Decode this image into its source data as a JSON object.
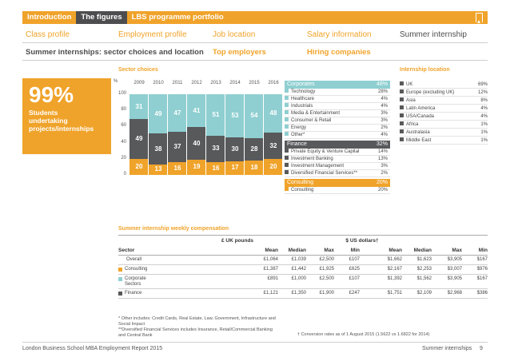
{
  "topnav": {
    "tabs": [
      "Introduction",
      "The figures",
      "LBS programme portfolio"
    ],
    "active": 1
  },
  "subnav": [
    "Class profile",
    "Employment profile",
    "Job location",
    "Salary information",
    "Summer internship"
  ],
  "subnav2": [
    "Summer internships: sector choices and location",
    "Top employers",
    "Hiring companies"
  ],
  "stat": {
    "value": "99%",
    "text": "Students undertaking projects/internships"
  },
  "sector_choices_title": "Sector choices",
  "internship_location_title": "Internship location",
  "chart_data": {
    "type": "bar",
    "stacked": true,
    "categories": [
      "2009",
      "2010",
      "2011",
      "2012",
      "2013",
      "2014",
      "2015",
      "2016"
    ],
    "ylabel": "%",
    "ylim": [
      0,
      100
    ],
    "yticks": [
      "0",
      "20",
      "40",
      "60",
      "80",
      "100"
    ],
    "series": [
      {
        "name": "Consulting",
        "color": "#f0a32a",
        "values": [
          20,
          13,
          16,
          19,
          16,
          17,
          18,
          20
        ]
      },
      {
        "name": "Finance",
        "color": "#58595b",
        "values": [
          49,
          38,
          37,
          40,
          33,
          30,
          28,
          32
        ]
      },
      {
        "name": "Corporates",
        "color": "#8fcfd1",
        "values": [
          31,
          49,
          47,
          41,
          51,
          53,
          54,
          48
        ]
      }
    ]
  },
  "sectors": [
    {
      "name": "Corporates",
      "pct": "48%",
      "color": "#8fcfd1",
      "items": [
        [
          "Technology",
          "28%"
        ],
        [
          "Healthcare",
          "4%"
        ],
        [
          "Industrials",
          "4%"
        ],
        [
          "Media & Entertainment",
          "3%"
        ],
        [
          "Consumer & Retail",
          "3%"
        ],
        [
          "Energy",
          "2%"
        ],
        [
          "Other*",
          "4%"
        ]
      ]
    },
    {
      "name": "Finance",
      "pct": "32%",
      "color": "#58595b",
      "items": [
        [
          "Private Equity & Venture Capital",
          "14%"
        ],
        [
          "Investment Banking",
          "13%"
        ],
        [
          "Investment Management",
          "3%"
        ],
        [
          "Diversified Financial Services**",
          "2%"
        ]
      ]
    },
    {
      "name": "Consulting",
      "pct": "20%",
      "color": "#f0a32a",
      "items": [
        [
          "Consulting",
          "20%"
        ]
      ]
    }
  ],
  "locations": [
    [
      "UK",
      "69%"
    ],
    [
      "Europe (excluding UK)",
      "12%"
    ],
    [
      "Asia",
      "8%"
    ],
    [
      "Latin America",
      "4%"
    ],
    [
      "USA/Canada",
      "4%"
    ],
    [
      "Africa",
      "1%"
    ],
    [
      "Australasia",
      "1%"
    ],
    [
      "Middle East",
      "1%"
    ]
  ],
  "comp": {
    "title": "Summer internship weekly compensation",
    "group_gbp": "£ UK pounds",
    "group_usd": "$ US dollars†",
    "headers": [
      "Sector",
      "Mean",
      "Median",
      "Max",
      "Min",
      "Mean",
      "Median",
      "Max",
      "Min"
    ],
    "rows": [
      {
        "label": "Overall",
        "color": null,
        "values": [
          "£1,064",
          "£1,039",
          "£2,500",
          "£107",
          "$1,662",
          "$1,623",
          "$3,905",
          "$167"
        ]
      },
      {
        "label": "Consulting",
        "color": "#f0a32a",
        "values": [
          "£1,387",
          "£1,442",
          "£1,925",
          "£625",
          "$2,167",
          "$2,253",
          "$3,007",
          "$976"
        ]
      },
      {
        "label": "Corporate Sectors",
        "color": "#8fcfd1",
        "values": [
          "£891",
          "£1,000",
          "£2,500",
          "£107",
          "$1,392",
          "$1,562",
          "$3,905",
          "$167"
        ]
      },
      {
        "label": "Finance",
        "color": "#58595b",
        "values": [
          "£1,121",
          "£1,350",
          "£1,900",
          "£247",
          "$1,751",
          "$2,109",
          "$2,968",
          "$386"
        ]
      }
    ]
  },
  "footnotes": {
    "f1": "* Other includes: Credit Cards, Real Estate, Law, Government, Infrastructure and Social Impact",
    "f2": "**Diversified Financial Services includes Insurance, Retail/Commercial Banking and Central Bank",
    "f3": "† Conversion rates as of 1 August 2015 (1.5622 vs 1.6822 for 2014)"
  },
  "footer": {
    "left": "London Business School MBA Employment Report 2015",
    "right": "Summer internships",
    "page": "9"
  }
}
